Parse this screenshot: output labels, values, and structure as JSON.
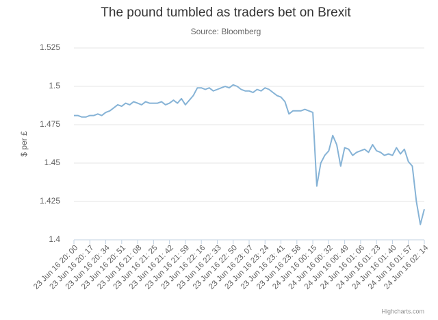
{
  "chart_data": {
    "type": "line",
    "title": "The pound tumbled as traders bet on Brexit",
    "subtitle": "Source: Bloomberg",
    "y_label": "$ per £",
    "credit": "Highcharts.com",
    "categories": [
      "23 Jun 16 20: 00",
      null,
      null,
      null,
      "23 Jun 16 20: 17",
      null,
      null,
      null,
      "23 Jun 16 20: 34",
      null,
      null,
      null,
      "23 Jun 16 20: 51",
      null,
      null,
      null,
      "23 Jun 16 21: 08",
      null,
      null,
      null,
      "23 Jun 16 21: 25",
      null,
      null,
      null,
      "23 Jun 16 21: 42",
      null,
      null,
      null,
      "23 Jun 16 21: 59",
      null,
      null,
      null,
      "23 Jun 16 22: 16",
      null,
      null,
      null,
      "23 Jun 16 22: 33",
      null,
      null,
      null,
      "23 Jun 16 22: 50",
      null,
      null,
      null,
      "23 Jun 16 23: 07",
      null,
      null,
      null,
      "23 Jun 16 23: 24",
      null,
      null,
      null,
      "23 Jun 16 23: 41",
      null,
      null,
      null,
      "23 Jun 16 23: 58",
      null,
      null,
      null,
      "24 Jun 16 00: 15",
      null,
      null,
      null,
      "24 Jun 16 00: 32",
      null,
      null,
      null,
      "24 Jun 16 00: 49",
      null,
      null,
      null,
      "24 Jun 16 01: 06",
      null,
      null,
      null,
      "24 Jun 16 01: 23",
      null,
      null,
      null,
      "24 Jun 16 01: 40",
      null,
      null,
      null,
      "24 Jun 16 01: 57",
      null,
      null,
      null,
      "24 Jun 16 02: 14"
    ],
    "values": [
      1.481,
      1.481,
      1.48,
      1.48,
      1.481,
      1.481,
      1.482,
      1.481,
      1.483,
      1.484,
      1.486,
      1.488,
      1.487,
      1.489,
      1.488,
      1.49,
      1.489,
      1.488,
      1.49,
      1.489,
      1.489,
      1.489,
      1.49,
      1.488,
      1.489,
      1.491,
      1.489,
      1.492,
      1.488,
      1.491,
      1.494,
      1.499,
      1.499,
      1.498,
      1.499,
      1.497,
      1.498,
      1.499,
      1.5,
      1.499,
      1.501,
      1.5,
      1.498,
      1.497,
      1.497,
      1.496,
      1.498,
      1.497,
      1.499,
      1.498,
      1.496,
      1.494,
      1.493,
      1.49,
      1.482,
      1.484,
      1.484,
      1.484,
      1.485,
      1.484,
      1.483,
      1.435,
      1.45,
      1.455,
      1.458,
      1.468,
      1.462,
      1.448,
      1.46,
      1.459,
      1.455,
      1.457,
      1.458,
      1.459,
      1.457,
      1.462,
      1.458,
      1.457,
      1.455,
      1.456,
      1.455,
      1.46,
      1.456,
      1.459,
      1.451,
      1.448,
      1.425,
      1.41,
      1.42
    ],
    "color": "#86b3d6",
    "ylim": [
      1.4,
      1.525
    ],
    "yticks": [
      1.4,
      1.425,
      1.45,
      1.475,
      1.5,
      1.525
    ],
    "grid": true
  }
}
